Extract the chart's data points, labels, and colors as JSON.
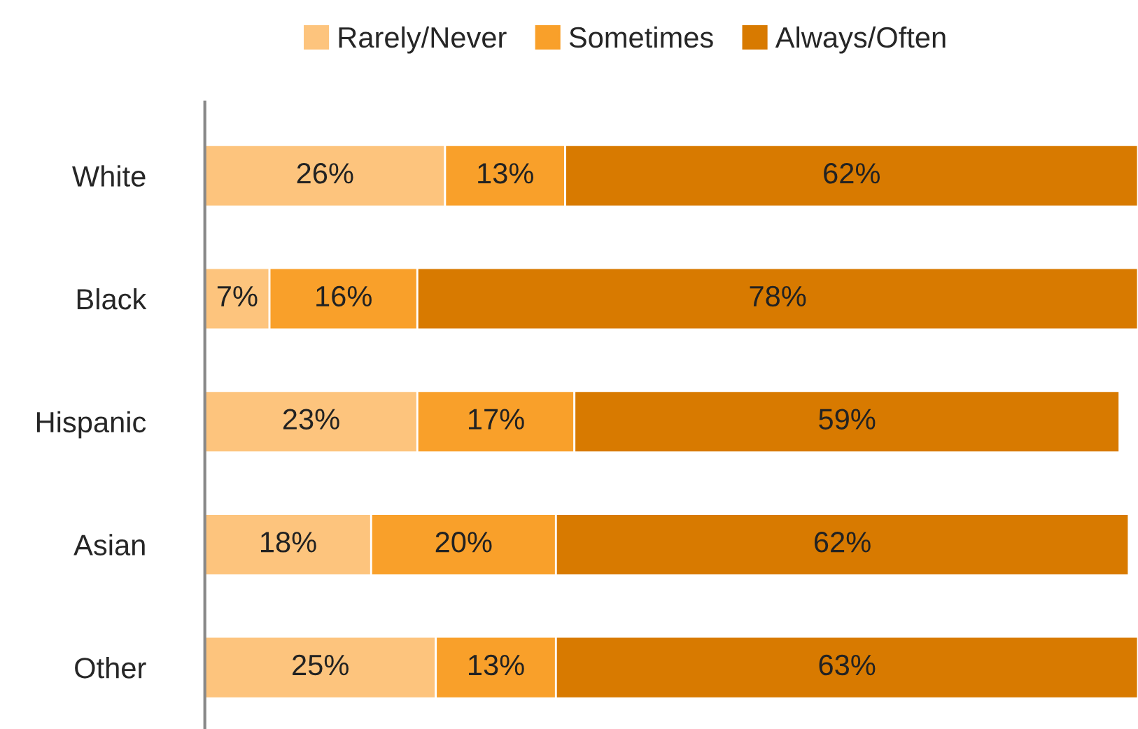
{
  "chart_data": {
    "type": "bar",
    "orientation": "horizontal",
    "stacked": true,
    "legend": "top",
    "grid": false,
    "categories": [
      "White",
      "Black",
      "Hispanic",
      "Asian",
      "Other"
    ],
    "series": [
      {
        "name": "Rarely/Never",
        "color": "#fdc47d",
        "values": [
          26,
          7,
          23,
          18,
          25
        ],
        "value_labels": [
          "26%",
          "7%",
          "23%",
          "18%",
          "25%"
        ]
      },
      {
        "name": "Sometimes",
        "color": "#f9a02a",
        "values": [
          13,
          16,
          17,
          20,
          13
        ],
        "value_labels": [
          "13%",
          "16%",
          "17%",
          "20%",
          "13%"
        ]
      },
      {
        "name": "Always/Often",
        "color": "#d87a00",
        "values": [
          62,
          78,
          59,
          62,
          63
        ],
        "value_labels": [
          "62%",
          "78%",
          "59%",
          "62%",
          "63%"
        ]
      }
    ]
  }
}
